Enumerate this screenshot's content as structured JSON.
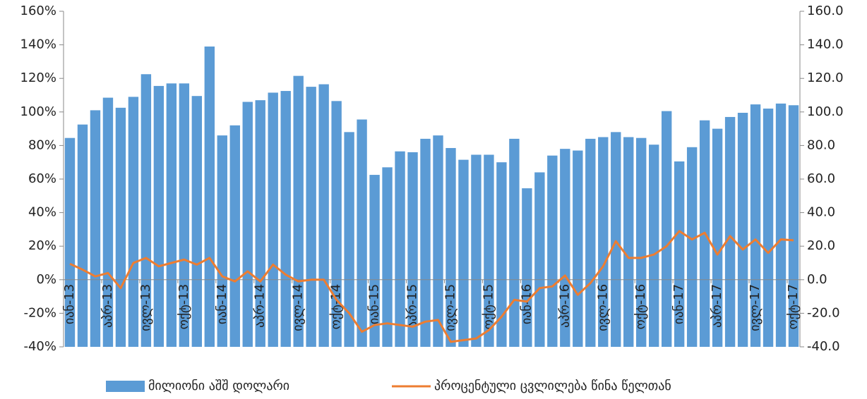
{
  "chart_data": {
    "type": "bar-line",
    "categories": [
      "იან-13",
      null,
      null,
      "აპრ-13",
      null,
      null,
      "ივლ-13",
      null,
      null,
      "ოქტ-13",
      null,
      null,
      "იან-14",
      null,
      null,
      "აპრ-14",
      null,
      null,
      "ივლ-14",
      null,
      null,
      "ოქტ-14",
      null,
      null,
      "იან-15",
      null,
      null,
      "აპრ-15",
      null,
      null,
      "ივლ-15",
      null,
      null,
      "ოქტ-15",
      null,
      null,
      "იან-16",
      null,
      null,
      "აპრ-16",
      null,
      null,
      "ივლ-16",
      null,
      null,
      "ოქტ-16",
      null,
      null,
      "იან-17",
      null,
      null,
      "აპრ-17",
      null,
      null,
      "ივლ-17",
      null,
      null,
      "ოქტ-17"
    ],
    "series": [
      {
        "name": "მილიონი აშშ დოლარი",
        "color": "#5b9bd5",
        "type": "bar",
        "axis": "y2",
        "values": [
          84.5,
          92.5,
          101,
          108.5,
          102.5,
          109,
          122.5,
          115.5,
          117,
          117,
          109.5,
          139,
          86,
          92,
          106,
          107,
          111.5,
          112.5,
          121.5,
          115,
          116.5,
          106.5,
          88,
          95.5,
          62.5,
          67,
          76.5,
          76,
          84,
          86,
          78.5,
          71.5,
          74.5,
          74.5,
          70,
          84,
          54.5,
          64,
          74,
          78,
          77,
          84,
          85,
          88,
          85,
          84.5,
          80.5,
          100.5,
          70.5,
          79,
          95,
          90,
          97,
          99.5,
          104.5,
          102,
          105,
          104
        ]
      },
      {
        "name": "პროცენტული ცვლილება წინა წელთან",
        "color": "#ed7d31",
        "type": "line",
        "axis": "y",
        "values": [
          9.5,
          6,
          2,
          4,
          -5,
          10,
          13,
          8,
          10,
          12,
          9,
          13,
          2,
          -1,
          5,
          -1,
          9,
          3,
          -1,
          0,
          0,
          -12,
          -20,
          -31,
          -27,
          -26,
          -27,
          -28,
          -25,
          -24,
          -37,
          -36,
          -35,
          -30,
          -22,
          -12,
          -13,
          -5,
          -4,
          2.5,
          -9,
          -2,
          8,
          23,
          13,
          13,
          15,
          20,
          29,
          24,
          28,
          15,
          26,
          18,
          24,
          16,
          24,
          23.5
        ]
      }
    ],
    "ylim": [
      -40,
      160
    ],
    "yticks": [
      {
        "value": -40,
        "label": "-40%"
      },
      {
        "value": -20,
        "label": "-20%"
      },
      {
        "value": 0,
        "label": "0%"
      },
      {
        "value": 20,
        "label": "20%"
      },
      {
        "value": 40,
        "label": "40%"
      },
      {
        "value": 60,
        "label": "60%"
      },
      {
        "value": 80,
        "label": "80%"
      },
      {
        "value": 100,
        "label": "100%"
      },
      {
        "value": 120,
        "label": "120%"
      },
      {
        "value": 140,
        "label": "140%"
      },
      {
        "value": 160,
        "label": "160%"
      }
    ],
    "y2lim": [
      -40,
      160
    ],
    "y2ticks": [
      {
        "value": -40,
        "label": "-40.0"
      },
      {
        "value": -20,
        "label": "-20.0"
      },
      {
        "value": 0,
        "label": "0.0"
      },
      {
        "value": 20,
        "label": "20.0"
      },
      {
        "value": 40,
        "label": "40.0"
      },
      {
        "value": 60,
        "label": "60.0"
      },
      {
        "value": 80,
        "label": "80.0"
      },
      {
        "value": 100,
        "label": "100.0"
      },
      {
        "value": 120,
        "label": "120.0"
      },
      {
        "value": 140,
        "label": "140.0"
      },
      {
        "value": 160,
        "label": "160.0"
      }
    ],
    "legend": "bottom"
  }
}
